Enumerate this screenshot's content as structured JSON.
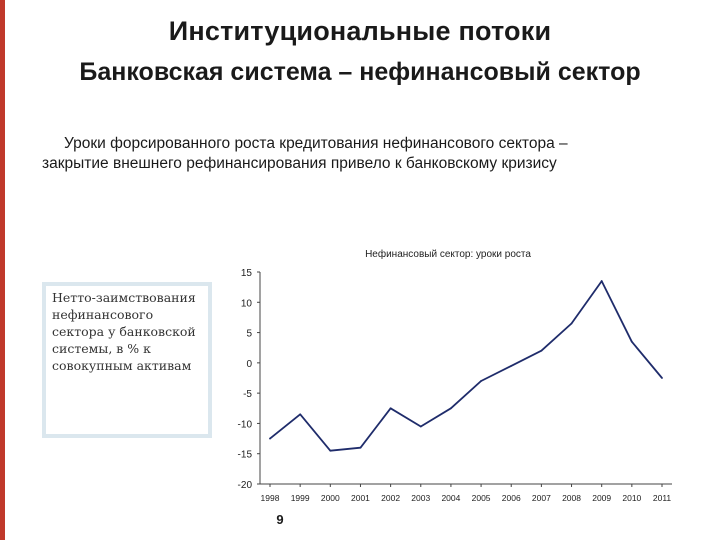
{
  "slide": {
    "title_line1": "Институциональные потоки",
    "title_line2": "Банковская система – нефинансовый сектор",
    "intro_text": "Уроки форсированного роста кредитования нефинансового сектора – закрытие внешнего рефинансирования привело к банковскому кризису",
    "side_box_text": "Нетто-заимствования нефинансового сектора у банковской системы, в % к совокупным активам",
    "page_number": "9",
    "accent_color": "#c0392b"
  },
  "chart_data": {
    "type": "line",
    "title": "Нефинансовый сектор: уроки роста",
    "xlabel": "",
    "ylabel": "",
    "categories": [
      "1998",
      "1999",
      "2000",
      "2001",
      "2002",
      "2003",
      "2004",
      "2005",
      "2006",
      "2007",
      "2008",
      "2009",
      "2010",
      "2011"
    ],
    "series": [
      {
        "values": [
          -12.5,
          -8.5,
          -14.5,
          -14.0,
          -7.5,
          -10.5,
          -7.5,
          -3.0,
          -0.5,
          2.0,
          6.5,
          13.5,
          3.5,
          -2.5
        ],
        "color": "#1f2c6b"
      }
    ],
    "ylim": [
      -20,
      15
    ],
    "yticks": [
      15,
      10,
      5,
      0,
      -5,
      -10,
      -15,
      -20
    ],
    "grid": false,
    "legend": "none"
  }
}
